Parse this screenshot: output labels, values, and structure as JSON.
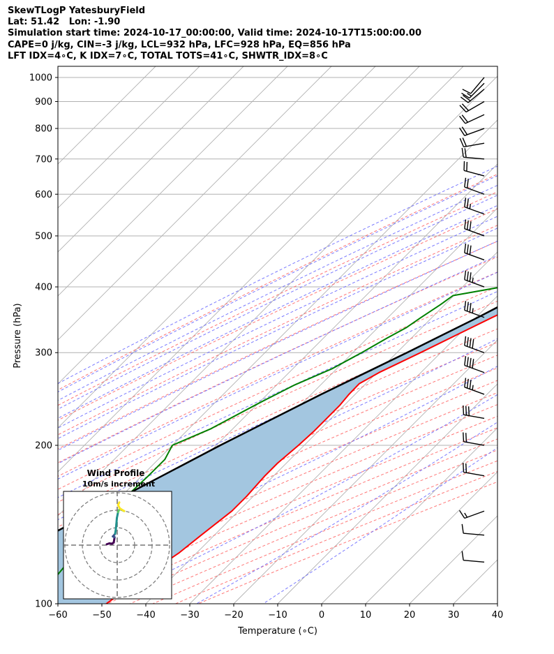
{
  "header": {
    "line1": "SkewTLogP YatesburyField",
    "line2": "Lat: 51.42   Lon: -1.90",
    "line3": "Simulation start time: 2024-10-17_00:00:00, Valid time: 2024-10-17T15:00:00.00",
    "line4": "CAPE=0 j/kg, CIN=-3 j/kg, LCL=932 hPa, LFC=928 hPa, EQ=856 hPa",
    "line5": "LFT IDX=4∘C, K IDX=7∘C, TOTAL TOTS=41∘C, SHWTR_IDX=8∘C"
  },
  "chart_data": [
    {
      "type": "line",
      "subtype": "skew-t log-p",
      "xlabel": "Temperature (∘C)",
      "ylabel": "Pressure (hPa)",
      "xlim": [
        -60,
        40
      ],
      "ylim": [
        1050,
        100
      ],
      "y_scale": "log",
      "x_ticks": [
        "−60",
        "−50",
        "−40",
        "−30",
        "−20",
        "−10",
        "0",
        "10",
        "20",
        "30",
        "40"
      ],
      "y_ticks": [
        "100",
        "200",
        "300",
        "400",
        "500",
        "600",
        "700",
        "800",
        "900",
        "1000"
      ],
      "grid": true,
      "colors": {
        "temperature": "#ff0000",
        "dewpoint": "#008000",
        "parcel": "#000000",
        "cape_fill": "#a3c6e0",
        "dry_adiabat": "#ff6666",
        "moist_adiabat": "#6b6bff",
        "mixing_ratio": "#9b59b6",
        "isotherm": "#b0b0b0"
      },
      "series": [
        {
          "key": "temperature",
          "points": [
            [
              1000,
              12.8
            ],
            [
              980,
              12.8
            ],
            [
              950,
              12.7
            ],
            [
              925,
              12.6
            ],
            [
              900,
              12.3
            ],
            [
              850,
              11.0
            ],
            [
              800,
              8.5
            ],
            [
              750,
              5.6
            ],
            [
              700,
              3.2
            ],
            [
              650,
              0.6
            ],
            [
              600,
              -1.4
            ],
            [
              550,
              -4.0
            ],
            [
              500,
              -7.5
            ],
            [
              475,
              -9.5
            ],
            [
              450,
              -12.3
            ],
            [
              425,
              -15.2
            ],
            [
              400,
              -18.8
            ],
            [
              375,
              -22.4
            ],
            [
              350,
              -26.3
            ],
            [
              325,
              -30.3
            ],
            [
              300,
              -34.6
            ],
            [
              275,
              -39.5
            ],
            [
              262,
              -41.5
            ],
            [
              250,
              -41.4
            ],
            [
              238,
              -41.0
            ],
            [
              224,
              -41.0
            ],
            [
              212,
              -41.0
            ],
            [
              200,
              -41.3
            ],
            [
              185,
              -42.0
            ],
            [
              175,
              -42.0
            ],
            [
              160,
              -41.5
            ],
            [
              150,
              -41.5
            ],
            [
              135,
              -43.0
            ],
            [
              125,
              -44.0
            ],
            [
              115,
              -46.0
            ],
            [
              105,
              -48.0
            ],
            [
              100,
              -49.0
            ]
          ]
        },
        {
          "key": "dewpoint",
          "points": [
            [
              990,
              12.0
            ],
            [
              975,
              12.0
            ],
            [
              950,
              11.8
            ],
            [
              925,
              11.5
            ],
            [
              900,
              9.3
            ],
            [
              880,
              7.0
            ],
            [
              860,
              5.0
            ],
            [
              830,
              1.5
            ],
            [
              800,
              -4.5
            ],
            [
              770,
              -11.0
            ],
            [
              740,
              -14.0
            ],
            [
              710,
              -16.8
            ],
            [
              680,
              -16.5
            ],
            [
              650,
              -14.0
            ],
            [
              620,
              -10.6
            ],
            [
              590,
              -6.0
            ],
            [
              560,
              -8.5
            ],
            [
              530,
              -11.0
            ],
            [
              500,
              -14.0
            ],
            [
              475,
              -17.0
            ],
            [
              450,
              -20.0
            ],
            [
              425,
              -23.5
            ],
            [
              410,
              -27.0
            ],
            [
              400,
              -31.0
            ],
            [
              385,
              -40.2
            ],
            [
              370,
              -41.0
            ],
            [
              350,
              -42.5
            ],
            [
              335,
              -43.5
            ],
            [
              320,
              -45.5
            ],
            [
              300,
              -48.0
            ],
            [
              280,
              -51.0
            ],
            [
              260,
              -56.0
            ],
            [
              240,
              -60.0
            ],
            [
              215,
              -65.0
            ],
            [
              200,
              -70.0
            ],
            [
              188,
              -68.5
            ],
            [
              175,
              -68.5
            ],
            [
              165,
              -68.7
            ],
            [
              155,
              -69.0
            ],
            [
              135,
              -68.0
            ],
            [
              118,
              -67.0
            ],
            [
              105,
              -66.0
            ],
            [
              100,
              -66.0
            ]
          ]
        },
        {
          "key": "parcel",
          "points": [
            [
              1000,
              16.3
            ],
            [
              975,
              14.3
            ],
            [
              950,
              12.2
            ],
            [
              932,
              10.8
            ],
            [
              900,
              9.5
            ],
            [
              850,
              7.4
            ],
            [
              800,
              5.2
            ],
            [
              750,
              2.8
            ],
            [
              700,
              0.2
            ],
            [
              650,
              -2.6
            ],
            [
              600,
              -5.7
            ],
            [
              550,
              -9.2
            ],
            [
              500,
              -13.1
            ],
            [
              450,
              -17.7
            ],
            [
              400,
              -23.1
            ],
            [
              350,
              -29.6
            ],
            [
              300,
              -37.7
            ],
            [
              250,
              -47.7
            ],
            [
              200,
              -59.1
            ],
            [
              150,
              -72.6
            ],
            [
              100,
              -91.6
            ]
          ]
        }
      ],
      "wind_barbs": [
        {
          "p": 1000,
          "dir": 220,
          "kt": 12
        },
        {
          "p": 975,
          "dir": 225,
          "kt": 15
        },
        {
          "p": 950,
          "dir": 230,
          "kt": 18
        },
        {
          "p": 900,
          "dir": 240,
          "kt": 22
        },
        {
          "p": 850,
          "dir": 245,
          "kt": 20
        },
        {
          "p": 800,
          "dir": 250,
          "kt": 20
        },
        {
          "p": 750,
          "dir": 260,
          "kt": 18
        },
        {
          "p": 700,
          "dir": 275,
          "kt": 18
        },
        {
          "p": 650,
          "dir": 285,
          "kt": 20
        },
        {
          "p": 600,
          "dir": 290,
          "kt": 22
        },
        {
          "p": 550,
          "dir": 290,
          "kt": 25
        },
        {
          "p": 500,
          "dir": 290,
          "kt": 30
        },
        {
          "p": 450,
          "dir": 290,
          "kt": 32
        },
        {
          "p": 400,
          "dir": 290,
          "kt": 35
        },
        {
          "p": 350,
          "dir": 290,
          "kt": 35
        },
        {
          "p": 300,
          "dir": 290,
          "kt": 40
        },
        {
          "p": 275,
          "dir": 290,
          "kt": 40
        },
        {
          "p": 250,
          "dir": 290,
          "kt": 35
        },
        {
          "p": 225,
          "dir": 280,
          "kt": 28
        },
        {
          "p": 200,
          "dir": 280,
          "kt": 20
        },
        {
          "p": 175,
          "dir": 280,
          "kt": 18
        },
        {
          "p": 150,
          "dir": 250,
          "kt": 15
        },
        {
          "p": 135,
          "dir": 275,
          "kt": 12
        },
        {
          "p": 120,
          "dir": 275,
          "kt": 12
        }
      ]
    },
    {
      "type": "line",
      "subtype": "hodograph",
      "title": "Wind Profile",
      "subtitle": "10m/s increment",
      "ring_step_ms": 10,
      "ring_count": 3,
      "colormap": [
        "#440154",
        "#3b528b",
        "#21918c",
        "#5ec962",
        "#fde725"
      ],
      "points": [
        [
          -6.0,
          0.5
        ],
        [
          -4.5,
          1.0
        ],
        [
          -3.0,
          0.8
        ],
        [
          -2.0,
          1.5
        ],
        [
          -1.5,
          4.5
        ],
        [
          -2.5,
          5.0
        ],
        [
          -2.0,
          5.5
        ],
        [
          -1.2,
          6.5
        ],
        [
          -0.8,
          9.0
        ],
        [
          -0.5,
          12.0
        ],
        [
          -0.2,
          15.5
        ],
        [
          0.5,
          19.0
        ],
        [
          1.5,
          21.0
        ],
        [
          3.0,
          20.0
        ],
        [
          4.0,
          19.5
        ],
        [
          1.5,
          21.0
        ],
        [
          0.5,
          23.0
        ],
        [
          1.2,
          24.5
        ]
      ]
    }
  ]
}
